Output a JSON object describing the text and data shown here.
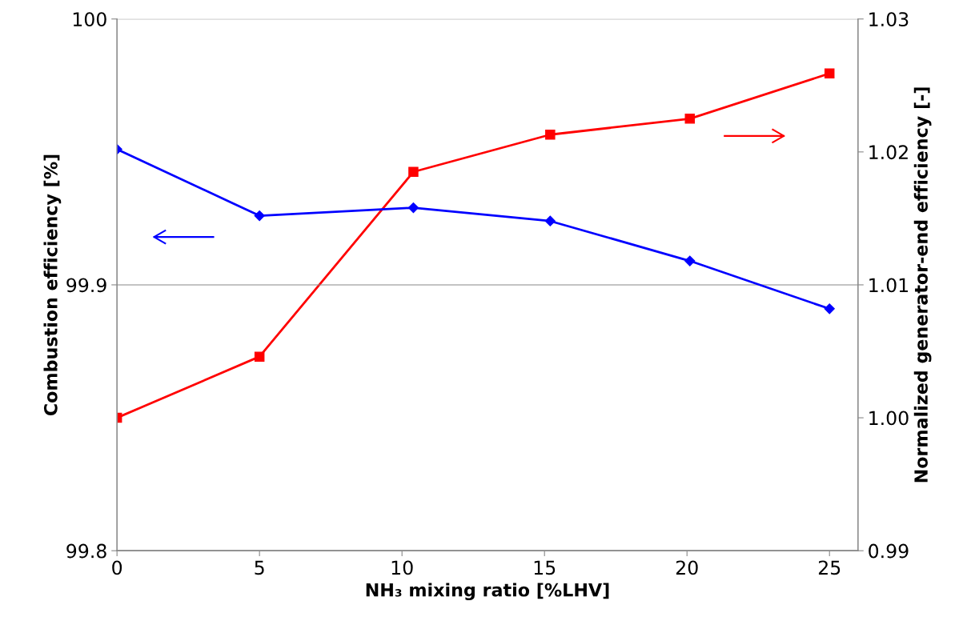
{
  "chart_data": {
    "type": "line",
    "xlabel": "NH₃ mixing ratio [%LHV]",
    "ylabel": "Combustion efficiency [%]",
    "y2label": "Normalized generator-end efficiency [-]",
    "xlim": [
      0,
      26
    ],
    "xticks": [
      0,
      5,
      10,
      15,
      20,
      25
    ],
    "ylim": [
      99.8,
      100
    ],
    "yticks": [
      99.8,
      99.9,
      100
    ],
    "y2lim": [
      0.99,
      1.03
    ],
    "y2ticks": [
      {
        "value": 0.99,
        "label": "0.99"
      },
      {
        "value": 1.0,
        "label": "1.00"
      },
      {
        "value": 1.01,
        "label": "1.01"
      },
      {
        "value": 1.02,
        "label": "1.02"
      },
      {
        "value": 1.03,
        "label": "1.03"
      }
    ],
    "grid": "y",
    "line_style": "solid",
    "series": [
      {
        "color": "#0000ff",
        "marker": "diamond",
        "x": [
          0,
          5,
          10.4,
          15.2,
          20.1,
          25
        ],
        "values": [
          99.951,
          99.926,
          99.929,
          99.924,
          99.909,
          99.891
        ]
      },
      {
        "color": "#ff0000",
        "marker": "square",
        "axis": "y2",
        "x": [
          0,
          5,
          10.4,
          15.2,
          20.1,
          25
        ],
        "values": [
          1.0,
          1.0046,
          1.0185,
          1.0213,
          1.0225,
          1.0259
        ]
      }
    ]
  }
}
